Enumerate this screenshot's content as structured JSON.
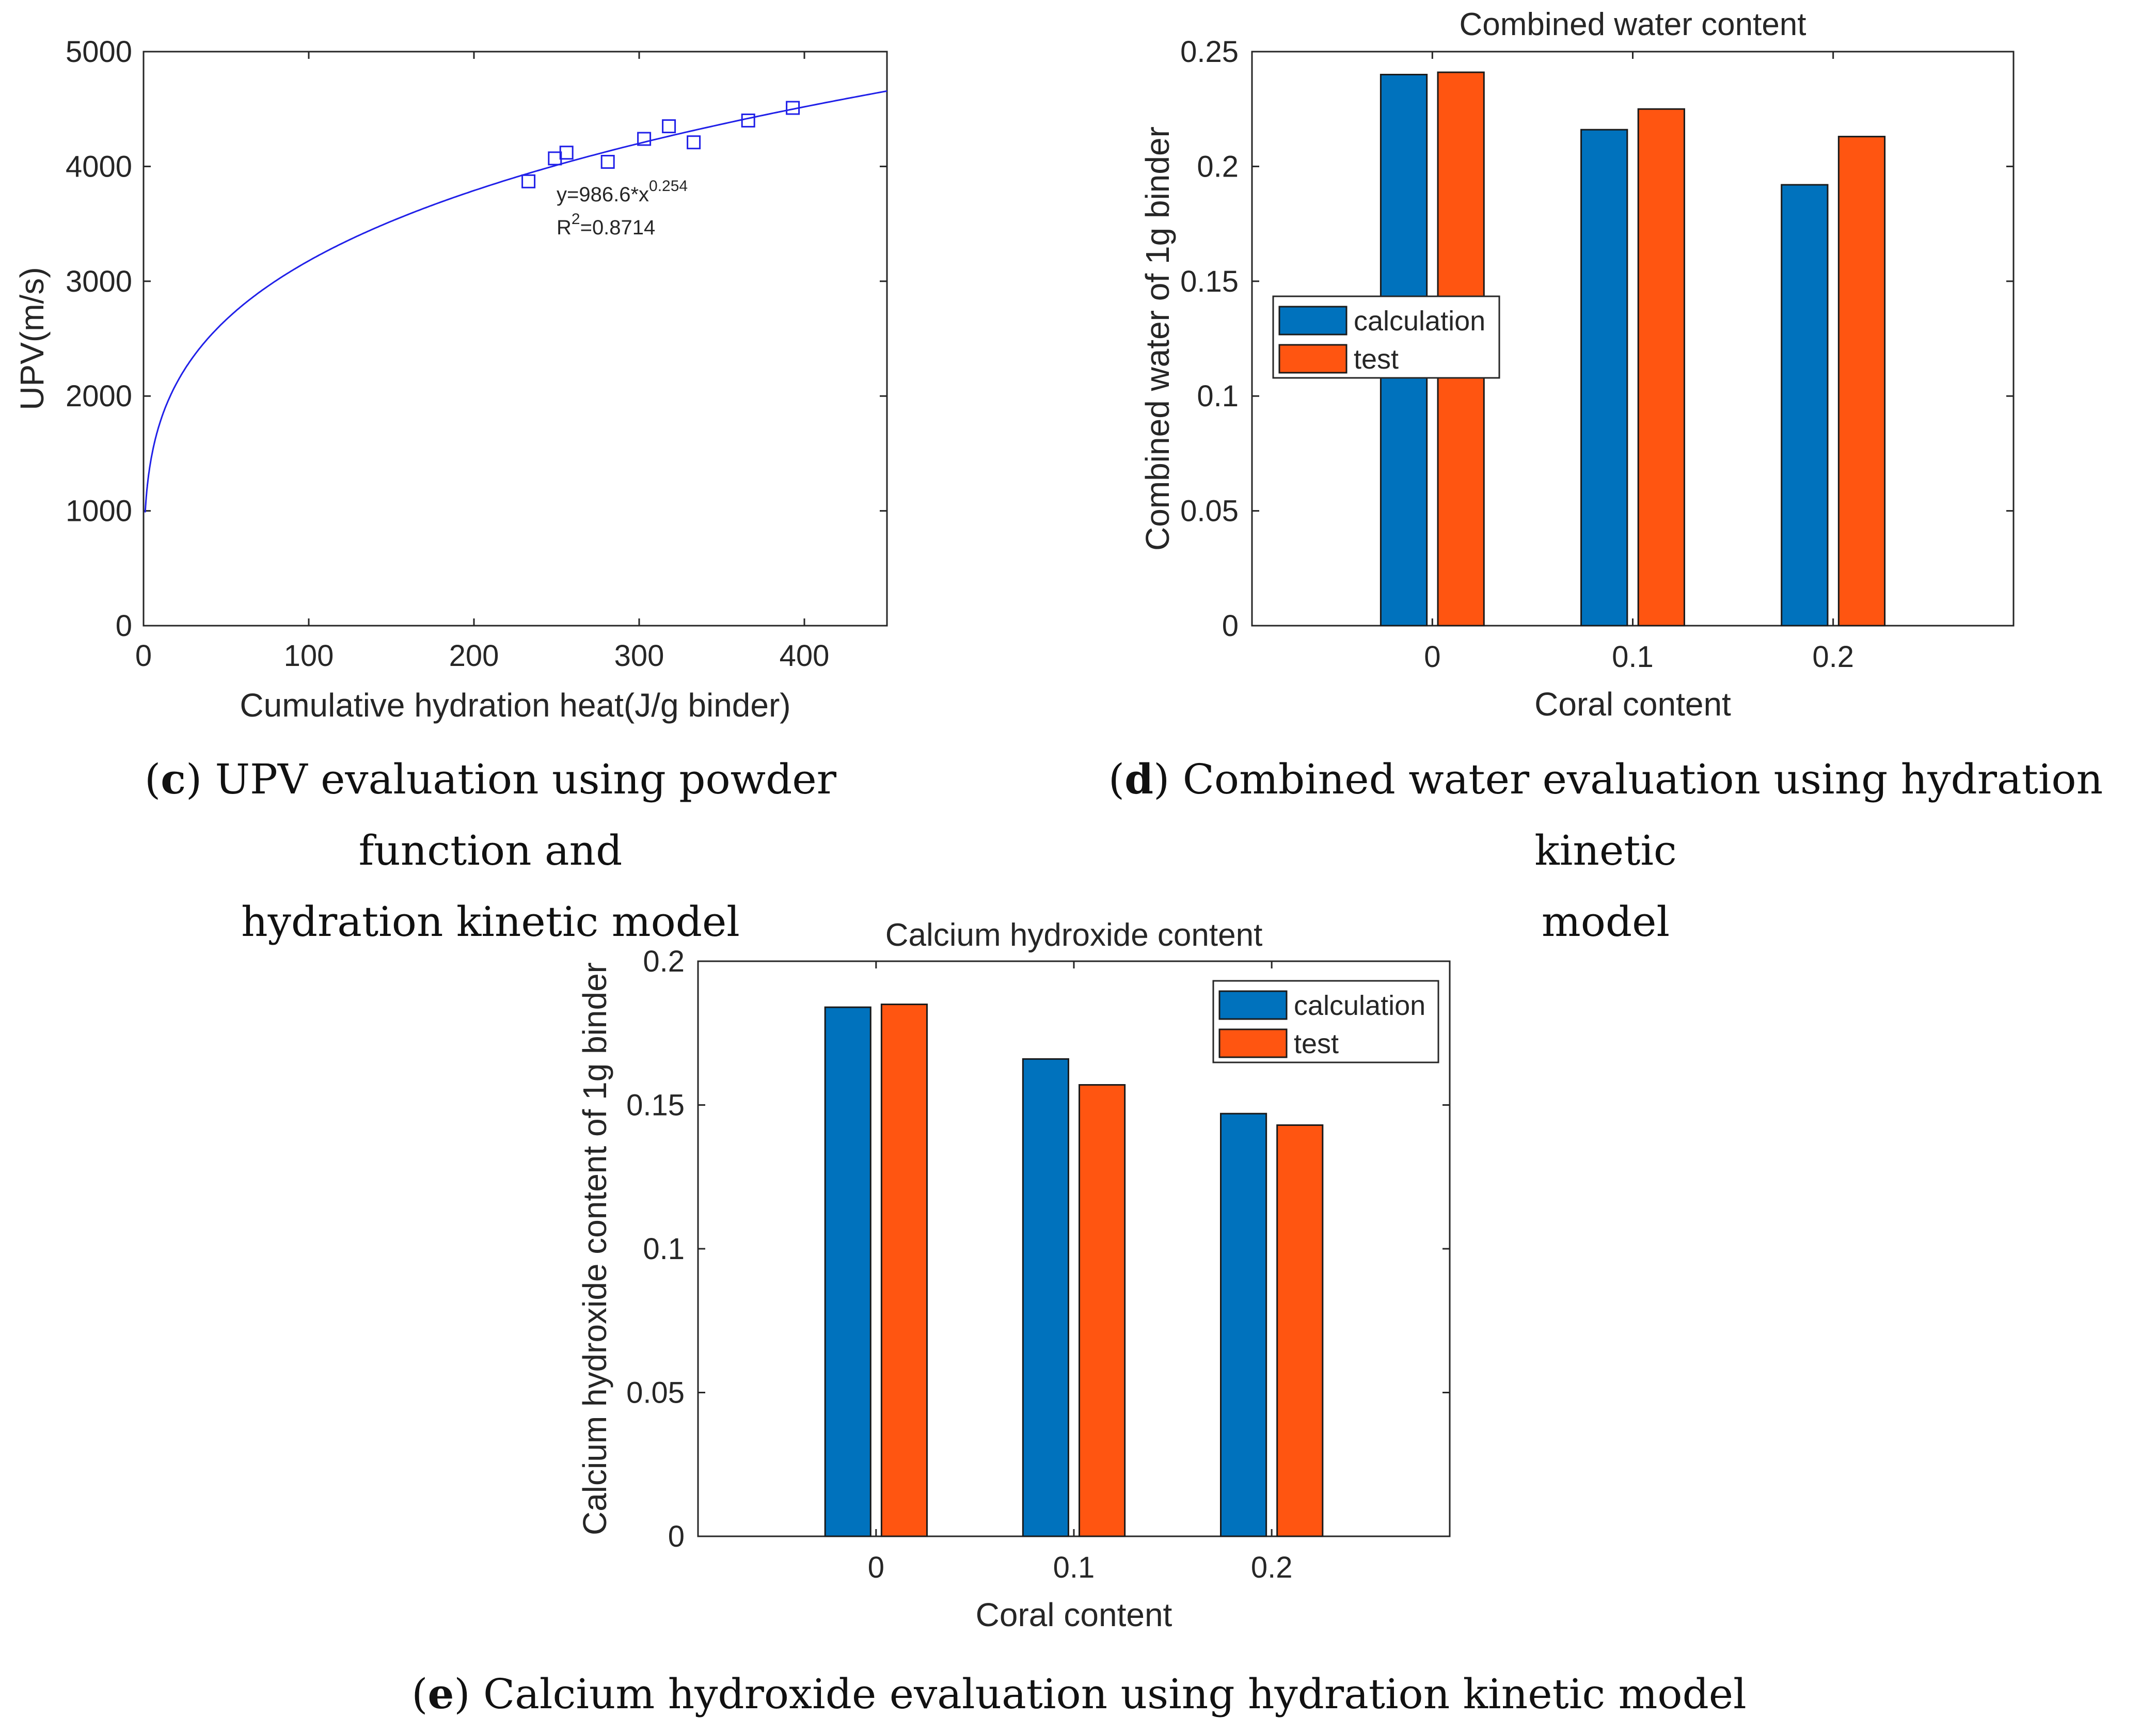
{
  "captions": {
    "c": {
      "letter": "c",
      "line1": "UPV evaluation using powder function and",
      "line2": "hydration kinetic model"
    },
    "d": {
      "letter": "d",
      "line1": "Combined water evaluation using hydration kinetic",
      "line2": "model"
    },
    "e": {
      "letter": "e",
      "line1": "Calcium hydroxide evaluation using hydration kinetic model"
    }
  },
  "colors": {
    "calculation": "#0072BD",
    "test": "#FF5511",
    "fit": "#2020E8",
    "axis": "#262626"
  },
  "chart_data": [
    {
      "id": "c",
      "type": "scatter",
      "title": "",
      "xlabel": "Cumulative hydration heat(J/g binder)",
      "ylabel": "UPV(m/s)",
      "xlim": [
        0,
        450
      ],
      "ylim": [
        0,
        5000
      ],
      "xticks": [
        0,
        100,
        200,
        300,
        400
      ],
      "yticks": [
        0,
        1000,
        2000,
        3000,
        4000,
        5000
      ],
      "points": [
        {
          "x": 233,
          "y": 3870
        },
        {
          "x": 249,
          "y": 4070
        },
        {
          "x": 256,
          "y": 4120
        },
        {
          "x": 281,
          "y": 4040
        },
        {
          "x": 303,
          "y": 4240
        },
        {
          "x": 318,
          "y": 4350
        },
        {
          "x": 333,
          "y": 4210
        },
        {
          "x": 366,
          "y": 4400
        },
        {
          "x": 393,
          "y": 4510
        }
      ],
      "fit": {
        "a": 986.6,
        "b": 0.254,
        "equation_prefix": "y=986.6*x",
        "equation_exponent": "0.254",
        "r2_prefix": "R",
        "r2_exponent": "2",
        "r2_suffix": "=0.8714"
      }
    },
    {
      "id": "d",
      "type": "bar",
      "title": "Combined water content",
      "xlabel": "Coral content",
      "ylabel": "Combined water of 1g binder",
      "categories": [
        "0",
        "0.1",
        "0.2"
      ],
      "ylim": [
        0,
        0.25
      ],
      "yticks": [
        "0",
        "0.05",
        "0.1",
        "0.15",
        "0.2",
        "0.25"
      ],
      "legend_position": "middle-left",
      "series": [
        {
          "name": "calculation",
          "values": [
            0.24,
            0.216,
            0.192
          ]
        },
        {
          "name": "test",
          "values": [
            0.241,
            0.225,
            0.213
          ]
        }
      ]
    },
    {
      "id": "e",
      "type": "bar",
      "title": "Calcium hydroxide content",
      "xlabel": "Coral content",
      "ylabel": "Calcium hydroxide content of 1g binder",
      "categories": [
        "0",
        "0.1",
        "0.2"
      ],
      "ylim": [
        0,
        0.2
      ],
      "yticks": [
        "0",
        "0.05",
        "0.1",
        "0.15",
        "0.2"
      ],
      "legend_position": "top-right",
      "series": [
        {
          "name": "calculation",
          "values": [
            0.184,
            0.166,
            0.147
          ]
        },
        {
          "name": "test",
          "values": [
            0.185,
            0.157,
            0.143
          ]
        }
      ]
    }
  ]
}
